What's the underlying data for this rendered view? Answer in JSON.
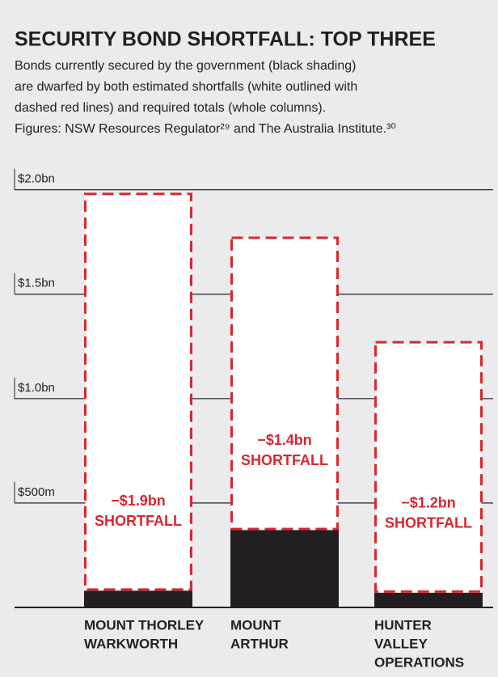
{
  "chart_data": {
    "type": "stacked_bar",
    "title": "SECURITY BOND SHORTFALL: TOP THREE",
    "subtitle": [
      "Bonds currently secured by the government (black shading)",
      "are dwarfed by both estimated shortfalls (white outlined with",
      "dashed red lines) and required totals (whole columns).",
      "Figures: NSW Resources Regulator²⁹ and The Australia Institute.³⁰"
    ],
    "categories": [
      [
        "MOUNT THORLEY",
        "WARKWORTH"
      ],
      [
        "MOUNT",
        "ARTHUR"
      ],
      [
        "HUNTER",
        "VALLEY",
        "OPERATIONS"
      ]
    ],
    "series": [
      {
        "color": "#231f20",
        "values": [
          0.08,
          0.37,
          0.07
        ]
      },
      {
        "color": "#d7282f",
        "values": [
          1.9,
          1.4,
          1.2
        ],
        "value_labels": [
          "−$1.9bn",
          "−$1.4bn",
          "−$1.2bn"
        ]
      }
    ],
    "annotation": "SHORTFALL",
    "ylim": [
      0,
      2.2
    ],
    "yticks": [
      {
        "value": 0.5,
        "label": "$500m"
      },
      {
        "value": 1.0,
        "label": "$1.0bn"
      },
      {
        "value": 1.5,
        "label": "$1.5bn"
      },
      {
        "value": 2.0,
        "label": "$2.0bn"
      }
    ],
    "grid": true
  }
}
